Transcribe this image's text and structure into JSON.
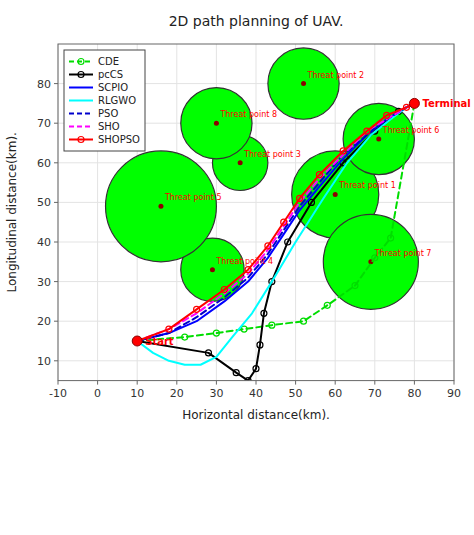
{
  "chart_data": {
    "type": "line",
    "title": "2D path planning of UAV.",
    "x_label": "Horizontal distance(km).",
    "y_label": "Longitudinal distance(km).",
    "xlim": [
      -10,
      90
    ],
    "ylim": [
      5,
      90
    ],
    "xticks": [
      -10,
      0,
      10,
      20,
      30,
      40,
      50,
      60,
      70,
      80,
      90
    ],
    "yticks": [
      10,
      20,
      30,
      40,
      50,
      60,
      70,
      80
    ],
    "grid": true,
    "legend": "upper left",
    "threats": {
      "color": "lime",
      "items": [
        {
          "name": "Threat point 1",
          "x": 60,
          "y": 52,
          "r": 11
        },
        {
          "name": "Threat point 2",
          "x": 52,
          "y": 80,
          "r": 9
        },
        {
          "name": "Threat point 3",
          "x": 36,
          "y": 60,
          "r": 7
        },
        {
          "name": "Threat point 4",
          "x": 29,
          "y": 33,
          "r": 8
        },
        {
          "name": "Threat point 5",
          "x": 16,
          "y": 49,
          "r": 14
        },
        {
          "name": "Threat point 6",
          "x": 71,
          "y": 66,
          "r": 9
        },
        {
          "name": "Threat point 7",
          "x": 69,
          "y": 35,
          "r": 12
        },
        {
          "name": "Threat point 8",
          "x": 30,
          "y": 70,
          "r": 9
        }
      ]
    },
    "points": {
      "color": "red",
      "items": [
        {
          "name": "Start",
          "x": 10,
          "y": 15
        },
        {
          "name": "Terminal",
          "x": 80,
          "y": 75
        }
      ]
    },
    "series": [
      {
        "name": "CDE",
        "color": "#00dd00",
        "line_style": "dashed",
        "marker": "circle",
        "x": [
          10,
          22,
          30,
          37,
          44,
          52,
          58,
          65,
          70,
          74,
          80
        ],
        "values": [
          15,
          16,
          17,
          18,
          19,
          20,
          24,
          29,
          36,
          41,
          75
        ]
      },
      {
        "name": "pcCS",
        "color": "black",
        "line_style": "solid",
        "marker": "circle",
        "x": [
          10,
          28,
          35,
          38,
          40,
          41,
          42,
          44,
          48,
          54,
          62,
          70,
          76,
          80
        ],
        "values": [
          15,
          12,
          7,
          5,
          8,
          14,
          22,
          30,
          40,
          50,
          60,
          68,
          73,
          75
        ]
      },
      {
        "name": "SCPIO",
        "color": "#0000ff",
        "line_style": "solid",
        "marker": "none",
        "x": [
          10,
          18,
          25,
          32,
          38,
          43,
          47,
          51,
          56,
          62,
          68,
          73,
          78,
          80
        ],
        "values": [
          15,
          17,
          20,
          25,
          30,
          36,
          42,
          48,
          54,
          61,
          67,
          71,
          74,
          75
        ]
      },
      {
        "name": "RLGWO",
        "color": "cyan",
        "line_style": "solid",
        "marker": "none",
        "x": [
          10,
          14,
          18,
          22,
          26,
          30,
          34,
          39,
          44,
          50,
          57,
          63,
          69,
          74,
          78,
          80
        ],
        "values": [
          15,
          12,
          10,
          9,
          9,
          11,
          16,
          22,
          30,
          40,
          51,
          60,
          67,
          71,
          74,
          75
        ]
      },
      {
        "name": "PSO",
        "color": "#0000cc",
        "line_style": "dashed",
        "marker": "none",
        "x": [
          10,
          18,
          25,
          32,
          38,
          43,
          47,
          51,
          56,
          62,
          68,
          73,
          78,
          80
        ],
        "values": [
          15,
          17,
          21,
          26,
          31,
          37,
          43,
          49,
          55,
          62,
          67,
          71,
          74,
          75
        ]
      },
      {
        "name": "SHO",
        "color": "#ff00ff",
        "line_style": "dashed",
        "marker": "none",
        "x": [
          10,
          18,
          25,
          32,
          38,
          43,
          47,
          51,
          56,
          62,
          68,
          73,
          78,
          80
        ],
        "values": [
          15,
          18,
          22,
          27,
          32,
          38,
          44,
          50,
          56,
          62,
          68,
          71,
          74,
          75
        ]
      },
      {
        "name": "SHOPSO",
        "color": "red",
        "line_style": "solid",
        "marker": "circle",
        "x": [
          10,
          18,
          25,
          32,
          38,
          43,
          47,
          51,
          56,
          62,
          68,
          73,
          78,
          80
        ],
        "values": [
          15,
          18,
          23,
          28,
          33,
          39,
          45,
          51,
          57,
          63,
          68,
          72,
          74,
          75
        ]
      }
    ]
  }
}
